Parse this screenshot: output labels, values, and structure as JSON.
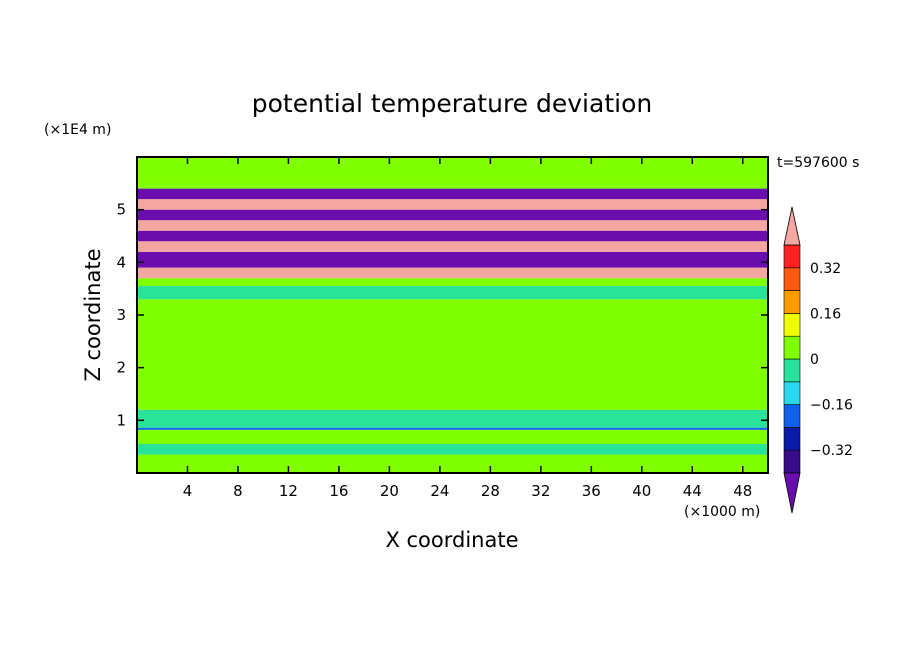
{
  "chart_data": {
    "type": "heatmap",
    "title": "potential temperature deviation",
    "time_label": "t=597600 s",
    "x_axis": {
      "label": "X coordinate",
      "unit": "(×1000 m)",
      "range": [
        0,
        50
      ],
      "ticks": [
        "4",
        "8",
        "12",
        "16",
        "20",
        "24",
        "28",
        "32",
        "36",
        "40",
        "44",
        "48"
      ],
      "tick_values": [
        4,
        8,
        12,
        16,
        20,
        24,
        28,
        32,
        36,
        40,
        44,
        48
      ]
    },
    "y_axis": {
      "label": "Z coordinate",
      "unit": "(×1E4 m)",
      "range": [
        0,
        6
      ],
      "ticks": [
        "1",
        "2",
        "3",
        "4",
        "5"
      ],
      "tick_values": [
        1,
        2,
        3,
        4,
        5
      ]
    },
    "colorbar": {
      "levels": [
        -0.4,
        -0.32,
        -0.24,
        -0.16,
        -0.08,
        0,
        0.08,
        0.16,
        0.24,
        0.32,
        0.4
      ],
      "colors": [
        "#6a0dad",
        "#3a0c8a",
        "#0a1aa8",
        "#1060ee",
        "#28d8f0",
        "#28e39a",
        "#80ff00",
        "#f0ff00",
        "#ff9c00",
        "#ff5a10",
        "#ff2020",
        "#f4a6a0"
      ],
      "tick_labels": [
        "0.32",
        "0.16",
        "0",
        "−0.16",
        "−0.32"
      ],
      "tick_values": [
        0.32,
        0.16,
        0,
        -0.16,
        -0.32
      ],
      "extend": "both"
    },
    "bands": [
      {
        "z": [
          0.0,
          0.35
        ],
        "value": 0.05
      },
      {
        "z": [
          0.35,
          0.55
        ],
        "value": -0.02
      },
      {
        "z": [
          0.55,
          0.82
        ],
        "value": 0.02
      },
      {
        "z": [
          0.82,
          0.86
        ],
        "value": -0.2
      },
      {
        "z": [
          0.86,
          1.2
        ],
        "value": -0.02
      },
      {
        "z": [
          1.2,
          3.3
        ],
        "value": 0.03
      },
      {
        "z": [
          3.3,
          3.55
        ],
        "value": -0.02
      },
      {
        "z": [
          3.55,
          3.7
        ],
        "value": 0.02
      },
      {
        "z": [
          3.7,
          3.9
        ],
        "value": 0.5
      },
      {
        "z": [
          3.9,
          4.2
        ],
        "value": -0.5
      },
      {
        "z": [
          4.2,
          4.4
        ],
        "value": 0.5
      },
      {
        "z": [
          4.4,
          4.6
        ],
        "value": -0.5
      },
      {
        "z": [
          4.6,
          4.8
        ],
        "value": 0.5
      },
      {
        "z": [
          4.8,
          5.0
        ],
        "value": -0.5
      },
      {
        "z": [
          5.0,
          5.2
        ],
        "value": 0.5
      },
      {
        "z": [
          5.2,
          5.4
        ],
        "value": -0.5
      },
      {
        "z": [
          5.4,
          5.6
        ],
        "value": 0.02
      },
      {
        "z": [
          5.6,
          6.0
        ],
        "value": 0.04
      }
    ]
  }
}
